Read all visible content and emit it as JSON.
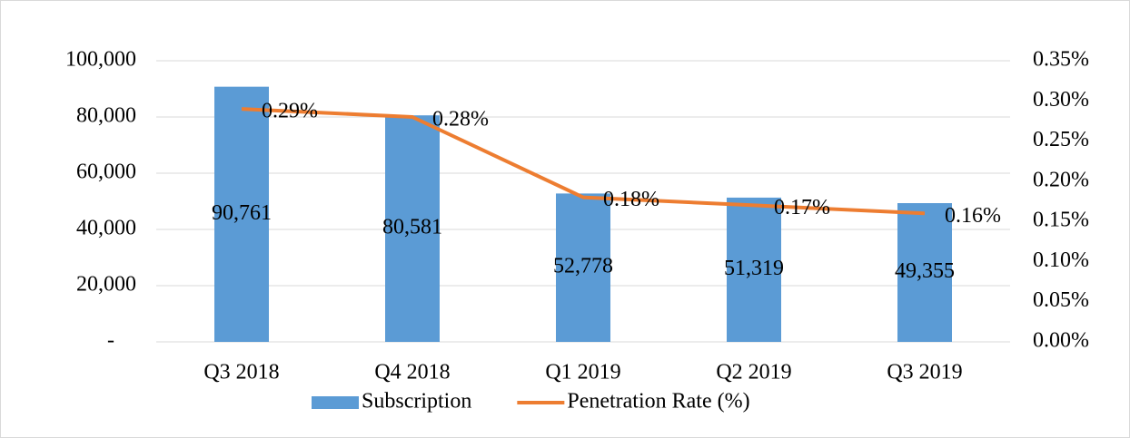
{
  "chart_data": {
    "type": "combo",
    "categories": [
      "Q3 2018",
      "Q4 2018",
      "Q1 2019",
      "Q2 2019",
      "Q3 2019"
    ],
    "series": [
      {
        "name": "Subscription",
        "type": "bar",
        "color": "#5b9bd5",
        "values": [
          90761,
          80581,
          52778,
          51319,
          49355
        ],
        "value_labels": [
          "90,761",
          "80,581",
          "52,778",
          "51,319",
          "49,355"
        ]
      },
      {
        "name": "Penetration Rate (%)",
        "type": "line",
        "axis": "y2",
        "color": "#ed7d31",
        "values": [
          0.29,
          0.28,
          0.18,
          0.17,
          0.16
        ],
        "value_labels": [
          "0.29%",
          "0.28%",
          "0.18%",
          "0.17%",
          "0.16%"
        ]
      }
    ],
    "ylim": [
      0,
      100000
    ],
    "yticks": [
      {
        "value": 0,
        "label": "-"
      },
      {
        "value": 20000,
        "label": "20,000"
      },
      {
        "value": 40000,
        "label": "40,000"
      },
      {
        "value": 60000,
        "label": "60,000"
      },
      {
        "value": 80000,
        "label": "80,000"
      },
      {
        "value": 100000,
        "label": "100,000"
      }
    ],
    "y2lim": [
      0,
      0.35
    ],
    "y2ticks": [
      {
        "value": 0,
        "label": "0.00%"
      },
      {
        "value": 0.05,
        "label": "0.05%"
      },
      {
        "value": 0.1,
        "label": "0.10%"
      },
      {
        "value": 0.15,
        "label": "0.15%"
      },
      {
        "value": 0.2,
        "label": "0.20%"
      },
      {
        "value": 0.25,
        "label": "0.25%"
      },
      {
        "value": 0.3,
        "label": "0.30%"
      },
      {
        "value": 0.35,
        "label": "0.35%"
      }
    ],
    "grid": true,
    "legend": "bottom"
  }
}
